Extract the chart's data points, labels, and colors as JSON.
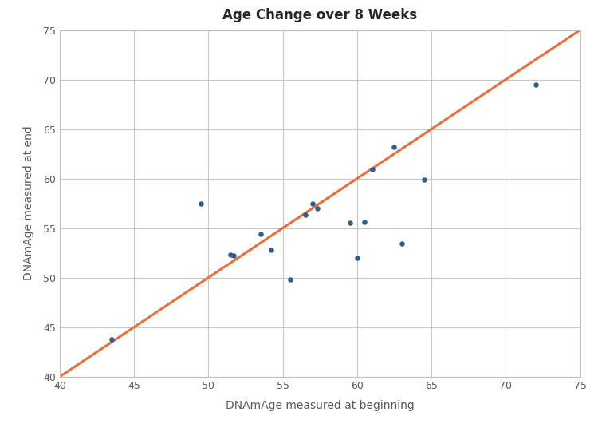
{
  "title": "Age Change over 8 Weeks",
  "xlabel": "DNAmAge measured at beginning",
  "ylabel": "DNAmAge measured at end",
  "xlim": [
    40,
    75
  ],
  "ylim": [
    40,
    75
  ],
  "xticks": [
    40,
    45,
    50,
    55,
    60,
    65,
    70,
    75
  ],
  "yticks": [
    40,
    45,
    50,
    55,
    60,
    65,
    70,
    75
  ],
  "scatter_x": [
    43.5,
    49.5,
    51.5,
    51.7,
    53.5,
    54.2,
    55.5,
    56.5,
    57.0,
    57.3,
    59.5,
    60.0,
    60.5,
    61.0,
    62.5,
    63.0,
    64.5,
    72.0
  ],
  "scatter_y": [
    43.8,
    57.5,
    52.3,
    52.2,
    54.4,
    52.8,
    49.8,
    56.3,
    57.5,
    57.0,
    55.5,
    52.0,
    55.6,
    60.9,
    63.2,
    53.4,
    59.9,
    69.5
  ],
  "scatter_color": "#2e5f8a",
  "line_color": "#e8703a",
  "line_width": 2.2,
  "scatter_size": 22,
  "title_fontsize": 12,
  "label_fontsize": 10,
  "tick_fontsize": 9,
  "text_color": "#595959",
  "background_color": "#ffffff",
  "plot_bg_color": "#ffffff",
  "grid_color": "#c8c8c8",
  "spine_color": "#c0c0c0"
}
